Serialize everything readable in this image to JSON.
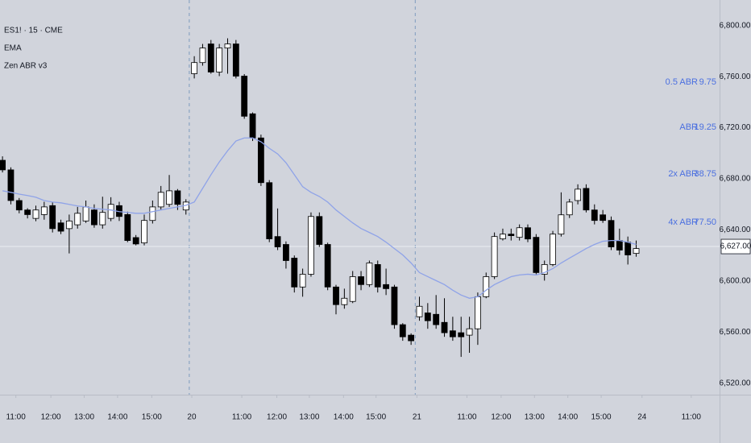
{
  "chart_data": {
    "type": "candlestick",
    "legend_lines": [
      "ES1! · 15 · CME",
      "EMA",
      "Zen ABR v3"
    ],
    "x": [
      0,
      1,
      2,
      3,
      4,
      5,
      6,
      7,
      8,
      9,
      10,
      11,
      12,
      13,
      14,
      15,
      16,
      17,
      18,
      19,
      20,
      21,
      22,
      23,
      24,
      25,
      26,
      27,
      28,
      29,
      30,
      31,
      32,
      33,
      34,
      35,
      36,
      37,
      38,
      39,
      40,
      41,
      42,
      43,
      44,
      45,
      46,
      47,
      48,
      49,
      50,
      51,
      52,
      53,
      54,
      55,
      56,
      57,
      58,
      59,
      60,
      61,
      62,
      63,
      64,
      65,
      66,
      67,
      68,
      69,
      70,
      71,
      72,
      73,
      74,
      75,
      76
    ],
    "open": [
      6694.5,
      6687,
      6663,
      6655.6,
      6649,
      6652,
      6659,
      6645.5,
      6641,
      6644,
      6647,
      6655.6,
      6644,
      6649,
      6659,
      6652,
      6634,
      6629.8,
      6647.4,
      6658,
      6660,
      6670.6,
      6655.6,
      6762.3,
      6771,
      6785.6,
      6763.6,
      6782.4,
      6785.6,
      6760.4,
      6730.9,
      6712,
      6677,
      6634.8,
      6628.6,
      6617.9,
      6595.3,
      6605.3,
      6650.5,
      6628.6,
      6595.3,
      6581.5,
      6584,
      6603.4,
      6597.2,
      6612.9,
      6597.2,
      6595.3,
      6565.8,
      6557.6,
      6572,
      6575,
      6573.9,
      6567.6,
      6561,
      6559.5,
      6557.6,
      6562.6,
      6587.7,
      6603.4,
      6633,
      6636.7,
      6634.2,
      6641.7,
      6634.2,
      6605.3,
      6612.9,
      6636.7,
      6651.8,
      6663,
      6672.5,
      6655.6,
      6651.8,
      6647.4,
      6631.7,
      6630.4,
      6621.6
    ],
    "high": [
      6697.6,
      6689,
      6665,
      6657,
      6659,
      6662,
      6662,
      6648,
      6652,
      6658,
      6663,
      6660,
      6666,
      6665.6,
      6662,
      6654.3,
      6636,
      6652,
      6663,
      6674.4,
      6683,
      6672,
      6664,
      6776,
      6785.6,
      6788.7,
      6785.6,
      6790,
      6788.7,
      6762,
      6732,
      6714.6,
      6679,
      6656.8,
      6631,
      6620,
      6609.7,
      6653.7,
      6653.7,
      6630,
      6597,
      6594,
      6607.8,
      6607.8,
      6616,
      6616,
      6609.7,
      6597,
      6567,
      6559,
      6587.7,
      6582.7,
      6589,
      6586.5,
      6572,
      6572,
      6572,
      6591,
      6606.6,
      6638,
      6641,
      6641,
      6644.3,
      6644.3,
      6636.7,
      6616,
      6639.2,
      6669.4,
      6664.3,
      6675.7,
      6675.7,
      6660,
      6655.6,
      6650.5,
      6641,
      6634.8,
      6631.7
    ],
    "low": [
      6685,
      6660,
      6653,
      6649,
      6646.8,
      6648,
      6638,
      6636.7,
      6621.6,
      6641,
      6645.5,
      6641.7,
      6641,
      6646.8,
      6647,
      6630.4,
      6627.9,
      6627.9,
      6645,
      6655.6,
      6658,
      6655.6,
      6652,
      6758.6,
      6768.6,
      6762.3,
      6760.4,
      6762.3,
      6758.6,
      6727,
      6709.6,
      6674.4,
      6630.4,
      6624.2,
      6609.7,
      6591,
      6587.7,
      6603.4,
      6626.7,
      6592.8,
      6573.9,
      6578.3,
      6582.7,
      6592.8,
      6595.3,
      6591,
      6589,
      6562.6,
      6553.2,
      6550,
      6568.9,
      6562.6,
      6562.6,
      6556.3,
      6553.2,
      6540.6,
      6543.8,
      6550,
      6586.5,
      6601.5,
      6631.7,
      6631.7,
      6631.7,
      6630.4,
      6605.3,
      6600.3,
      6611.6,
      6634.8,
      6649.3,
      6660,
      6653.7,
      6644.3,
      6645.5,
      6624.2,
      6620.4,
      6612.9,
      6619
    ],
    "close": [
      6687,
      6663,
      6655.6,
      6652,
      6655.6,
      6658,
      6641,
      6639,
      6647,
      6653,
      6658,
      6644,
      6653.7,
      6660,
      6650.5,
      6631.7,
      6629,
      6647.4,
      6658,
      6669.4,
      6670.6,
      6660,
      6661.8,
      6771,
      6782.4,
      6763.6,
      6782.4,
      6785.6,
      6760.4,
      6729,
      6712,
      6677,
      6633,
      6626.7,
      6616,
      6595.3,
      6605.3,
      6650.5,
      6628.6,
      6595.3,
      6581.5,
      6586.5,
      6603.4,
      6597.2,
      6614.1,
      6595.3,
      6594,
      6565.8,
      6556.3,
      6553.2,
      6580.2,
      6568.9,
      6565.8,
      6559.5,
      6556.3,
      6556.3,
      6562.6,
      6587.7,
      6603.4,
      6634.8,
      6636.7,
      6635.5,
      6641.7,
      6632.9,
      6606.6,
      6612.9,
      6636.7,
      6651.8,
      6661.8,
      6671.9,
      6655.6,
      6647.4,
      6647.4,
      6626.7,
      6624.2,
      6620.4,
      6625.4
    ],
    "up_color": "#ffffff",
    "down_color": "#000000",
    "series": [
      {
        "name": "EMA",
        "color": "#8fa3e8",
        "values": [
          6670.6,
          6669.4,
          6668,
          6666.9,
          6665.6,
          6663,
          6661.8,
          6661.2,
          6660,
          6658.7,
          6658,
          6656.8,
          6656.2,
          6655.6,
          6654.3,
          6653.7,
          6653,
          6653,
          6654.3,
          6655.6,
          6656.8,
          6658,
          6659.3,
          6661.8,
          6672.5,
          6683.2,
          6693.2,
          6702,
          6709.6,
          6712,
          6712,
          6709,
          6703.9,
          6699.5,
          6692.6,
          6683.2,
          6673.8,
          6669.4,
          6666.2,
          6661.8,
          6655.6,
          6650.5,
          6645.5,
          6641.1,
          6638,
          6634.8,
          6630.4,
          6625.4,
          6620.4,
          6614.1,
          6606.6,
          6603.4,
          6600.3,
          6597.2,
          6592.8,
          6589,
          6586.5,
          6587.7,
          6592.8,
          6597.2,
          6600.3,
          6603.4,
          6604.7,
          6605.3,
          6604.7,
          6606.6,
          6609.7,
          6614.1,
          6617.9,
          6621.6,
          6625.4,
          6628.6,
          6631.1,
          6631.7,
          6631.7,
          6630.4,
          6628.6
        ]
      }
    ],
    "xlim": [
      -0.3,
      86
    ],
    "xticks": [
      {
        "value": 1.6,
        "label": "11:00"
      },
      {
        "value": 5.8,
        "label": "12:00"
      },
      {
        "value": 9.8,
        "label": "13:00"
      },
      {
        "value": 13.8,
        "label": "14:00"
      },
      {
        "value": 17.9,
        "label": "15:00"
      },
      {
        "value": 22.7,
        "label": "20"
      },
      {
        "value": 28.7,
        "label": "11:00"
      },
      {
        "value": 32.9,
        "label": "12:00"
      },
      {
        "value": 36.8,
        "label": "13:00"
      },
      {
        "value": 40.9,
        "label": "14:00"
      },
      {
        "value": 44.8,
        "label": "15:00"
      },
      {
        "value": 49.7,
        "label": "21"
      },
      {
        "value": 55.7,
        "label": "11:00"
      },
      {
        "value": 59.8,
        "label": "12:00"
      },
      {
        "value": 63.8,
        "label": "13:00"
      },
      {
        "value": 67.8,
        "label": "14:00"
      },
      {
        "value": 71.8,
        "label": "15:00"
      },
      {
        "value": 76.7,
        "label": "24"
      },
      {
        "value": 82.6,
        "label": "11:00"
      }
    ],
    "session_breaks": [
      22.4,
      49.5
    ],
    "ylim": [
      6511,
      6820
    ],
    "yticks": [
      {
        "value": 6800,
        "label": "6,800.00"
      },
      {
        "value": 6760,
        "label": "6,760.00"
      },
      {
        "value": 6720,
        "label": "6,720.00"
      },
      {
        "value": 6680,
        "label": "6,680.00"
      },
      {
        "value": 6640,
        "label": "6,640.00"
      },
      {
        "value": 6600,
        "label": "6,600.00"
      },
      {
        "value": 6560,
        "label": "6,560.00"
      },
      {
        "value": 6520,
        "label": "6,520.00"
      }
    ],
    "last_price": {
      "value": 6627,
      "label": "6,627.00"
    },
    "abr_table": [
      {
        "label": "0.5 ABR",
        "value": "9.75"
      },
      {
        "label": "ABR",
        "value": "19.25"
      },
      {
        "label": "2x ABR",
        "value": "38.75"
      },
      {
        "label": "4x ABR",
        "value": "77.50"
      }
    ]
  }
}
